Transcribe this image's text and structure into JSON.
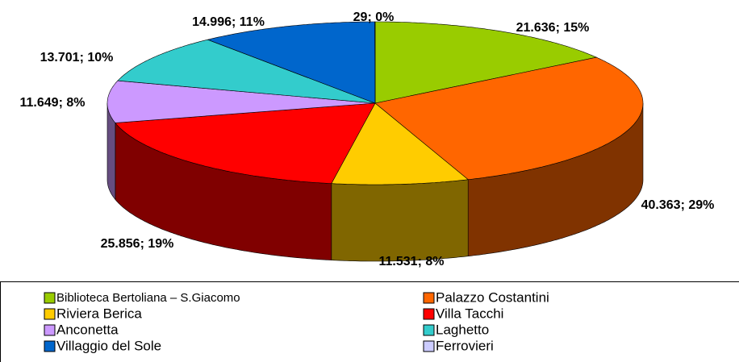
{
  "chart_data": {
    "type": "pie3d",
    "categories": [
      "Biblioteca Bertoliana – S.Giacomo",
      "Palazzo Costantini",
      "Riviera Berica",
      "Villa Tacchi",
      "Anconetta",
      "Laghetto",
      "Villaggio del Sole",
      "Ferrovieri"
    ],
    "values": [
      21636,
      40363,
      11531,
      25856,
      11649,
      13701,
      14996,
      29
    ],
    "value_labels": [
      "21.636; 15%",
      "40.363; 29%",
      "11.531; 8%",
      "25.856; 19%",
      "11.649; 8%",
      "13.701; 10%",
      "14.996; 11%",
      "29; 0%"
    ],
    "colors": [
      "#99cc00",
      "#ff6600",
      "#ffcc00",
      "#ff0000",
      "#cc99ff",
      "#33cccc",
      "#0066cc",
      "#ccccff"
    ],
    "legend": "bottom"
  }
}
